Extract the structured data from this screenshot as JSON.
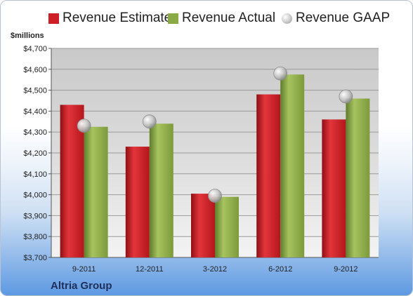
{
  "chart_data": {
    "type": "bar",
    "categories": [
      "9-2011",
      "12-2011",
      "3-2012",
      "6-2012",
      "9-2012"
    ],
    "series": [
      {
        "name": "Revenue Estimate",
        "type": "bar",
        "color": "#cc1f26",
        "values": [
          4430,
          4230,
          4005,
          4480,
          4360
        ]
      },
      {
        "name": "Revenue Actual",
        "type": "bar",
        "color": "#8aaa45",
        "values": [
          4325,
          4340,
          3990,
          4575,
          4460
        ]
      },
      {
        "name": "Revenue GAAP",
        "type": "scatter",
        "color": "#b8b8b8",
        "values": [
          4330,
          4350,
          3995,
          4580,
          4470
        ]
      }
    ],
    "ylabel": "$millions",
    "ylim": [
      3700,
      4700
    ],
    "yticks": [
      "$3,700",
      "$3,800",
      "$3,900",
      "$4,000",
      "$4,100",
      "$4,200",
      "$4,300",
      "$4,400",
      "$4,500",
      "$4,600",
      "$4,700"
    ],
    "grid": true,
    "legend_position": "top"
  },
  "footer": {
    "company": "Altria Group"
  }
}
